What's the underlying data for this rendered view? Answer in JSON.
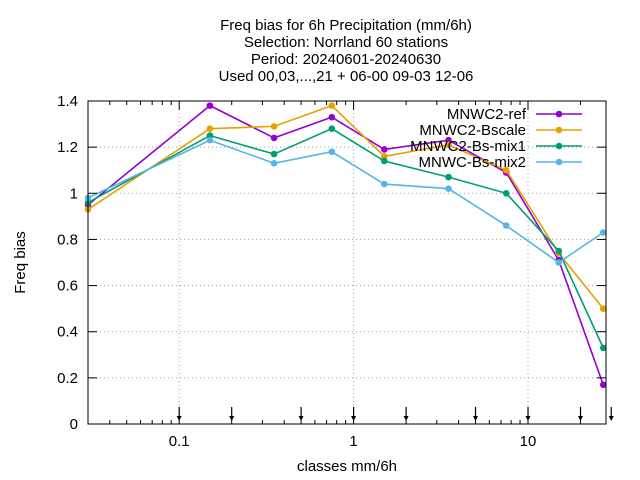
{
  "chart_data": {
    "type": "line",
    "title_lines": [
      "Freq bias  for 6h Precipitation (mm/6h)",
      "Selection: Norrland     60 stations",
      "Period: 20240601-20240630",
      "Used 00,03,...,21 + 06-00 09-03 12-06"
    ],
    "xlabel": "classes mm/6h",
    "ylabel": "Freq bias",
    "x_scale": "log",
    "xlim": [
      0.03,
      28
    ],
    "ylim": [
      0,
      1.4
    ],
    "x_ticks": [
      {
        "value": 0.1,
        "label": "0.1"
      },
      {
        "value": 1,
        "label": "1"
      },
      {
        "value": 10,
        "label": "10"
      }
    ],
    "y_ticks": [
      {
        "value": 0,
        "label": "0"
      },
      {
        "value": 0.2,
        "label": "0.2"
      },
      {
        "value": 0.4,
        "label": "0.4"
      },
      {
        "value": 0.6,
        "label": "0.6"
      },
      {
        "value": 0.8,
        "label": "0.8"
      },
      {
        "value": 1.0,
        "label": "1"
      },
      {
        "value": 1.2,
        "label": "1.2"
      },
      {
        "value": 1.4,
        "label": "1.4"
      }
    ],
    "grid": true,
    "legend_position": "top-right",
    "class_thresholds": [
      0.1,
      0.2,
      0.5,
      1,
      2,
      5,
      10,
      20,
      30
    ],
    "x": [
      0.03,
      0.15,
      0.35,
      0.75,
      1.5,
      3.5,
      7.5,
      15,
      27
    ],
    "series": [
      {
        "name": "MNWC2-ref",
        "color": "#9400d3",
        "marker": "circle",
        "values": [
          0.95,
          1.38,
          1.24,
          1.33,
          1.19,
          1.23,
          1.09,
          0.71,
          0.17
        ]
      },
      {
        "name": "MNWC2-Bscale",
        "color": "#e6a000",
        "marker": "circle",
        "values": [
          0.93,
          1.28,
          1.29,
          1.38,
          1.16,
          1.21,
          1.1,
          0.74,
          0.5
        ]
      },
      {
        "name": "MNWC2-Bs-mix1",
        "color": "#009e73",
        "marker": "circle",
        "values": [
          0.96,
          1.25,
          1.17,
          1.28,
          1.14,
          1.07,
          1.0,
          0.75,
          0.33
        ]
      },
      {
        "name": "MNWC-Bs-mix2",
        "color": "#56b4e9",
        "marker": "circle",
        "values": [
          0.98,
          1.23,
          1.13,
          1.18,
          1.04,
          1.02,
          0.86,
          0.7,
          0.83
        ]
      }
    ]
  }
}
